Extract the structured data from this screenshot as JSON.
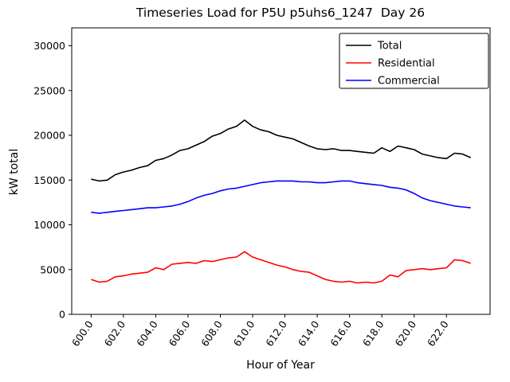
{
  "chart_data": {
    "type": "line",
    "title": "Timeseries Load for P5U p5uhs6_1247  Day 26",
    "xlabel": "Hour of Year",
    "ylabel": "kW total",
    "xlim": [
      598.8,
      624.7
    ],
    "ylim": [
      0,
      32000
    ],
    "grid": false,
    "legend_position": "upper right",
    "xtick_values": [
      600,
      602,
      604,
      606,
      608,
      610,
      612,
      614,
      616,
      618,
      620,
      622
    ],
    "xtick_labels": [
      "600.0",
      "602.0",
      "604.0",
      "606.0",
      "608.0",
      "610.0",
      "612.0",
      "614.0",
      "616.0",
      "618.0",
      "620.0",
      "622.0"
    ],
    "ytick_values": [
      0,
      5000,
      10000,
      15000,
      20000,
      25000,
      30000
    ],
    "ytick_labels": [
      "0",
      "5000",
      "10000",
      "15000",
      "20000",
      "25000",
      "30000"
    ],
    "x": [
      600.0,
      600.5,
      601.0,
      601.5,
      602.0,
      602.5,
      603.0,
      603.5,
      604.0,
      604.5,
      605.0,
      605.5,
      606.0,
      606.5,
      607.0,
      607.5,
      608.0,
      608.5,
      609.0,
      609.5,
      610.0,
      610.5,
      611.0,
      611.5,
      612.0,
      612.5,
      613.0,
      613.5,
      614.0,
      614.5,
      615.0,
      615.5,
      616.0,
      616.5,
      617.0,
      617.5,
      618.0,
      618.5,
      619.0,
      619.5,
      620.0,
      620.5,
      621.0,
      621.5,
      622.0,
      622.5,
      623.0,
      623.5
    ],
    "series": [
      {
        "name": "Total",
        "color": "#000000",
        "values": [
          15100,
          14900,
          15000,
          15600,
          15900,
          16100,
          16400,
          16600,
          17200,
          17400,
          17800,
          18300,
          18500,
          18900,
          19300,
          19900,
          20200,
          20700,
          21000,
          21700,
          21000,
          20600,
          20400,
          20000,
          19800,
          19600,
          19200,
          18800,
          18500,
          18400,
          18500,
          18300,
          18300,
          18200,
          18100,
          18000,
          18600,
          18200,
          18800,
          18600,
          18400,
          17900,
          17700,
          17500,
          17400,
          18000,
          17900,
          17500
        ]
      },
      {
        "name": "Residential",
        "color": "#ff0000",
        "values": [
          3900,
          3600,
          3700,
          4200,
          4300,
          4500,
          4600,
          4700,
          5200,
          5000,
          5600,
          5700,
          5800,
          5700,
          6000,
          5900,
          6100,
          6300,
          6400,
          7000,
          6400,
          6100,
          5800,
          5500,
          5300,
          5000,
          4800,
          4700,
          4300,
          3900,
          3700,
          3600,
          3700,
          3500,
          3600,
          3500,
          3700,
          4400,
          4200,
          4900,
          5000,
          5100,
          5000,
          5100,
          5200,
          6100,
          6000,
          5700
        ]
      },
      {
        "name": "Commercial",
        "color": "#0000ff",
        "values": [
          11400,
          11300,
          11400,
          11500,
          11600,
          11700,
          11800,
          11900,
          11900,
          12000,
          12100,
          12300,
          12600,
          13000,
          13300,
          13500,
          13800,
          14000,
          14100,
          14300,
          14500,
          14700,
          14800,
          14900,
          14900,
          14900,
          14800,
          14800,
          14700,
          14700,
          14800,
          14900,
          14900,
          14700,
          14600,
          14500,
          14400,
          14200,
          14100,
          13900,
          13500,
          13000,
          12700,
          12500,
          12300,
          12100,
          12000,
          11900
        ]
      }
    ]
  }
}
